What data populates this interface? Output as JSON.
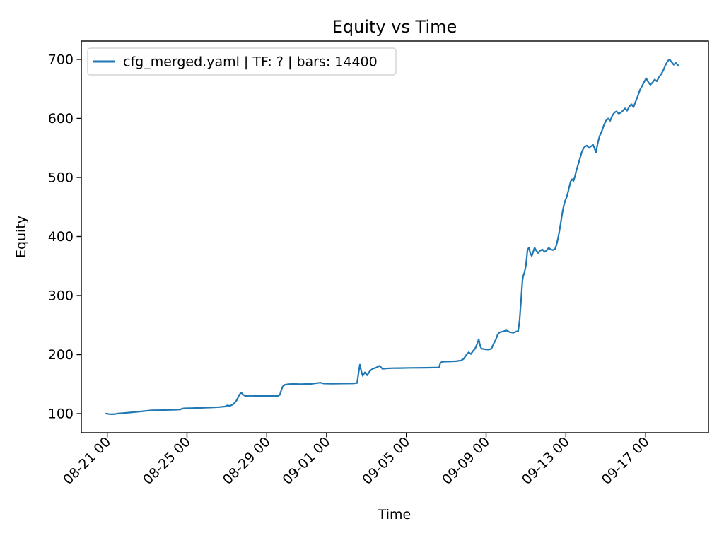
{
  "figure": {
    "background": "#ffffff",
    "spine_color": "#000000",
    "text_color": "#000000"
  },
  "chart_data": {
    "type": "line",
    "title": "Equity vs Time",
    "xlabel": "Time",
    "ylabel": "Equity",
    "grid": false,
    "legend_position": "upper left",
    "legend": [
      {
        "label": "cfg_merged.yaml | TF: ? | bars: 14400",
        "color": "#1f77b4"
      }
    ],
    "x_unit": "days (0 = 08-20 00:00), tick labels formatted MM-DD HH",
    "xlim": [
      -0.3,
      31.15
    ],
    "ylim": [
      67.7,
      731.1
    ],
    "xticks": [
      {
        "d": 1,
        "label": "08-21 00"
      },
      {
        "d": 5,
        "label": "08-25 00"
      },
      {
        "d": 9,
        "label": "08-29 00"
      },
      {
        "d": 12,
        "label": "09-01 00"
      },
      {
        "d": 16,
        "label": "09-05 00"
      },
      {
        "d": 20,
        "label": "09-09 00"
      },
      {
        "d": 24,
        "label": "09-13 00"
      },
      {
        "d": 28,
        "label": "09-17 00"
      }
    ],
    "yticks": [
      100,
      200,
      300,
      400,
      500,
      600,
      700
    ],
    "series": [
      {
        "name": "cfg_merged.yaml | TF: ? | bars: 14400",
        "color": "#1f77b4",
        "points": [
          [
            0.94,
            100
          ],
          [
            1.0,
            99.8
          ],
          [
            1.1,
            99.2
          ],
          [
            1.22,
            99
          ],
          [
            1.4,
            99.3
          ],
          [
            1.54,
            100.3
          ],
          [
            1.83,
            101
          ],
          [
            2.11,
            101.8
          ],
          [
            2.43,
            102.8
          ],
          [
            2.71,
            103.8
          ],
          [
            3.0,
            104.8
          ],
          [
            3.24,
            105.5
          ],
          [
            3.6,
            105.8
          ],
          [
            4.02,
            106.2
          ],
          [
            4.41,
            106.6
          ],
          [
            4.66,
            107
          ],
          [
            4.77,
            108.5
          ],
          [
            4.91,
            109
          ],
          [
            5.2,
            109.3
          ],
          [
            5.55,
            109.6
          ],
          [
            5.9,
            110
          ],
          [
            6.26,
            110.5
          ],
          [
            6.61,
            111
          ],
          [
            6.9,
            112
          ],
          [
            7.04,
            114
          ],
          [
            7.14,
            113
          ],
          [
            7.32,
            116
          ],
          [
            7.46,
            121
          ],
          [
            7.54,
            126
          ],
          [
            7.61,
            131
          ],
          [
            7.71,
            136
          ],
          [
            7.82,
            132
          ],
          [
            7.92,
            130
          ],
          [
            8.21,
            130.5
          ],
          [
            8.56,
            129.8
          ],
          [
            8.92,
            130.2
          ],
          [
            9.27,
            129.8
          ],
          [
            9.56,
            130
          ],
          [
            9.66,
            132
          ],
          [
            9.73,
            140
          ],
          [
            9.8,
            146
          ],
          [
            9.91,
            149
          ],
          [
            10.09,
            150
          ],
          [
            10.34,
            150.3
          ],
          [
            10.69,
            150
          ],
          [
            11.22,
            150.5
          ],
          [
            11.68,
            152.5
          ],
          [
            11.86,
            151
          ],
          [
            12.29,
            150.8
          ],
          [
            12.82,
            151
          ],
          [
            13.35,
            151.2
          ],
          [
            13.53,
            152
          ],
          [
            13.6,
            168
          ],
          [
            13.67,
            183
          ],
          [
            13.74,
            172
          ],
          [
            13.81,
            164
          ],
          [
            13.92,
            170
          ],
          [
            14.03,
            165
          ],
          [
            14.17,
            172
          ],
          [
            14.31,
            176
          ],
          [
            14.49,
            178
          ],
          [
            14.66,
            181
          ],
          [
            14.8,
            176
          ],
          [
            14.98,
            176.5
          ],
          [
            15.3,
            177
          ],
          [
            15.66,
            177.2
          ],
          [
            16.19,
            177.5
          ],
          [
            16.9,
            177.8
          ],
          [
            17.43,
            178
          ],
          [
            17.64,
            178.2
          ],
          [
            17.71,
            186
          ],
          [
            17.82,
            188
          ],
          [
            18.14,
            188.3
          ],
          [
            18.49,
            188.8
          ],
          [
            18.74,
            190
          ],
          [
            18.88,
            193
          ],
          [
            19.02,
            200
          ],
          [
            19.13,
            204
          ],
          [
            19.24,
            201
          ],
          [
            19.34,
            206
          ],
          [
            19.45,
            210
          ],
          [
            19.56,
            219
          ],
          [
            19.63,
            226
          ],
          [
            19.7,
            215
          ],
          [
            19.77,
            210
          ],
          [
            19.95,
            209
          ],
          [
            20.12,
            208.5
          ],
          [
            20.27,
            210
          ],
          [
            20.37,
            218
          ],
          [
            20.48,
            225
          ],
          [
            20.58,
            234
          ],
          [
            20.69,
            238
          ],
          [
            20.83,
            239
          ],
          [
            21.01,
            241
          ],
          [
            21.19,
            238
          ],
          [
            21.36,
            237
          ],
          [
            21.51,
            239
          ],
          [
            21.61,
            240
          ],
          [
            21.68,
            258
          ],
          [
            21.72,
            277
          ],
          [
            21.75,
            290
          ],
          [
            21.79,
            310
          ],
          [
            21.82,
            325
          ],
          [
            21.86,
            333
          ],
          [
            21.93,
            340
          ],
          [
            22.0,
            352
          ],
          [
            22.04,
            365
          ],
          [
            22.07,
            376
          ],
          [
            22.14,
            381
          ],
          [
            22.22,
            372
          ],
          [
            22.29,
            367
          ],
          [
            22.36,
            374
          ],
          [
            22.43,
            381
          ],
          [
            22.5,
            377
          ],
          [
            22.61,
            372
          ],
          [
            22.71,
            376
          ],
          [
            22.82,
            378
          ],
          [
            22.93,
            374
          ],
          [
            23.03,
            376
          ],
          [
            23.14,
            381
          ],
          [
            23.24,
            378
          ],
          [
            23.35,
            377
          ],
          [
            23.46,
            379
          ],
          [
            23.53,
            386
          ],
          [
            23.6,
            396
          ],
          [
            23.67,
            408
          ],
          [
            23.74,
            422
          ],
          [
            23.81,
            438
          ],
          [
            23.88,
            450
          ],
          [
            23.95,
            459
          ],
          [
            24.03,
            466
          ],
          [
            24.1,
            474
          ],
          [
            24.17,
            484
          ],
          [
            24.24,
            493
          ],
          [
            24.31,
            497
          ],
          [
            24.38,
            494
          ],
          [
            24.45,
            501
          ],
          [
            24.52,
            511
          ],
          [
            24.59,
            519
          ],
          [
            24.66,
            527
          ],
          [
            24.73,
            535
          ],
          [
            24.8,
            543
          ],
          [
            24.88,
            549
          ],
          [
            24.95,
            552
          ],
          [
            25.05,
            554
          ],
          [
            25.16,
            550
          ],
          [
            25.27,
            553
          ],
          [
            25.37,
            555
          ],
          [
            25.44,
            549
          ],
          [
            25.51,
            542
          ],
          [
            25.59,
            557
          ],
          [
            25.69,
            570
          ],
          [
            25.8,
            578
          ],
          [
            25.9,
            588
          ],
          [
            26.01,
            596
          ],
          [
            26.12,
            600
          ],
          [
            26.22,
            596
          ],
          [
            26.33,
            605
          ],
          [
            26.44,
            610
          ],
          [
            26.54,
            612
          ],
          [
            26.65,
            608
          ],
          [
            26.76,
            610
          ],
          [
            26.86,
            613
          ],
          [
            26.97,
            617
          ],
          [
            27.07,
            613
          ],
          [
            27.18,
            620
          ],
          [
            27.29,
            624
          ],
          [
            27.39,
            619
          ],
          [
            27.5,
            629
          ],
          [
            27.61,
            638
          ],
          [
            27.71,
            648
          ],
          [
            27.82,
            655
          ],
          [
            27.93,
            662
          ],
          [
            28.03,
            668
          ],
          [
            28.14,
            661
          ],
          [
            28.24,
            657
          ],
          [
            28.35,
            661
          ],
          [
            28.46,
            666
          ],
          [
            28.56,
            663
          ],
          [
            28.67,
            670
          ],
          [
            28.78,
            675
          ],
          [
            28.88,
            681
          ],
          [
            28.99,
            690
          ],
          [
            29.1,
            697
          ],
          [
            29.2,
            700
          ],
          [
            29.31,
            695
          ],
          [
            29.41,
            691
          ],
          [
            29.52,
            694
          ],
          [
            29.59,
            691
          ],
          [
            29.66,
            689
          ]
        ]
      }
    ]
  }
}
